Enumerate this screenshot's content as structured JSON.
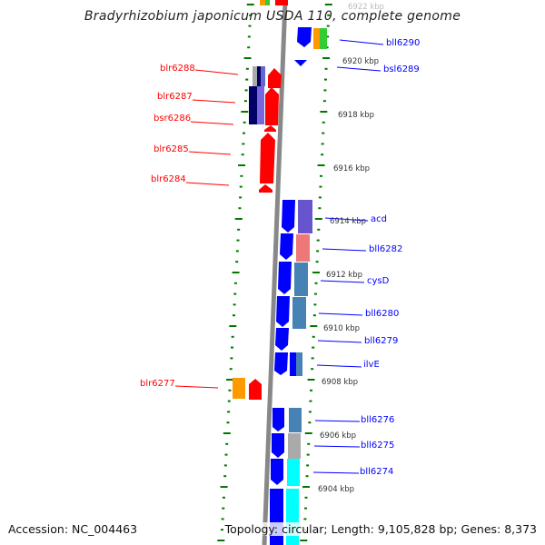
{
  "title": "Bradyrhizobium japonicum USDA 110, complete genome",
  "accession": "Accession: NC_004463",
  "summary": "Topology: circular; Length: 9,105,828 bp; Genes: 8,373",
  "colors": {
    "forward": "#ff0000",
    "reverse": "#0000ff",
    "ticks": "#007700",
    "backbone": "#888888"
  },
  "left_labels": [
    "blr6288",
    "blr6287",
    "bsr6286",
    "blr6285",
    "blr6284",
    "blr6277"
  ],
  "right_labels": [
    "bll6290",
    "bsl6289",
    "acd",
    "bll6282",
    "cysD",
    "bll6280",
    "bll6279",
    "ilvE",
    "bll6276",
    "bll6275",
    "bll6274"
  ],
  "kbp_ticks": [
    "6922 kbp",
    "6920 kbp",
    "6918 kbp",
    "6916 kbp",
    "6914 kbp",
    "6912 kbp",
    "6910 kbp",
    "6908 kbp",
    "6906 kbp",
    "6904 kbp"
  ]
}
